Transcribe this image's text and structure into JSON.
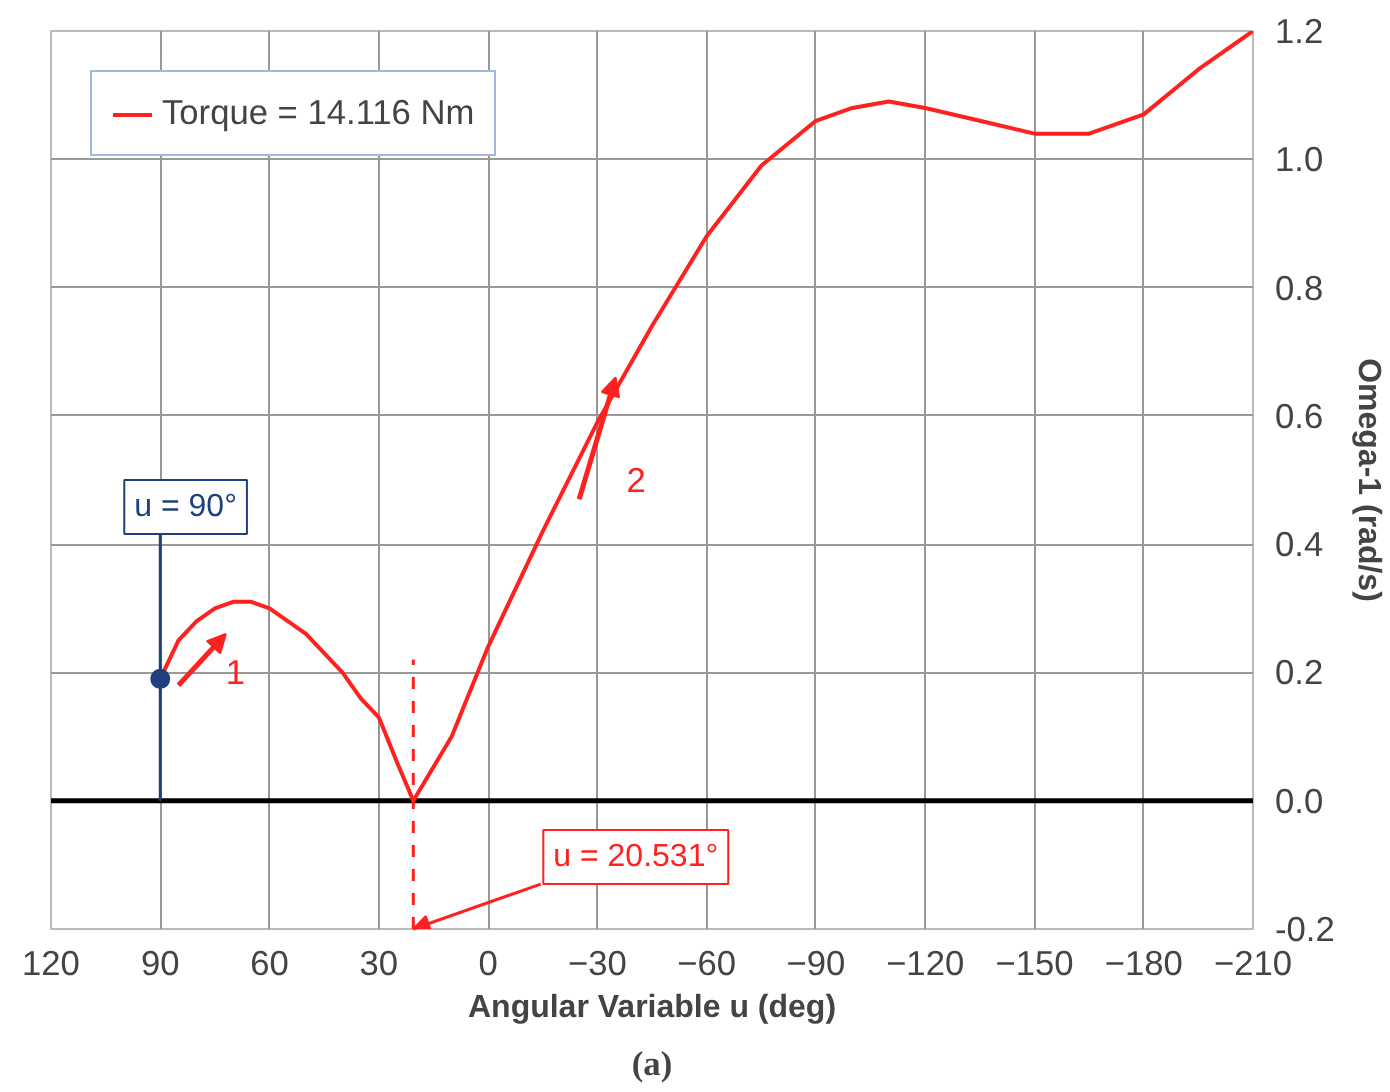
{
  "chart_data": {
    "type": "line",
    "xlabel": "Angular Variable u (deg)",
    "ylabel": "Omega-1 (rad/s)",
    "x": [
      90,
      85,
      80,
      75,
      70,
      65,
      60,
      55,
      50,
      45,
      40,
      35,
      30,
      25,
      20.531,
      10,
      0,
      -15,
      -30,
      -45,
      -60,
      -75,
      -90,
      -100,
      -110,
      -120,
      -135,
      -150,
      -165,
      -180,
      -195,
      -210
    ],
    "series": [
      {
        "name": "Torque = 14.116 Nm",
        "color": "#ff2020",
        "values": [
          0.19,
          0.25,
          0.28,
          0.3,
          0.31,
          0.31,
          0.3,
          0.28,
          0.26,
          0.23,
          0.2,
          0.16,
          0.13,
          0.06,
          0,
          0.1,
          0.24,
          0.42,
          0.59,
          0.74,
          0.88,
          0.99,
          1.06,
          1.08,
          1.09,
          1.08,
          1.06,
          1.04,
          1.04,
          1.07,
          1.14,
          1.2
        ]
      },
      {
        "type": "scatter",
        "color": "#1f3f7f",
        "x": [
          90
        ],
        "values": [
          0.19
        ]
      }
    ],
    "xlim": [
      120,
      -210
    ],
    "xticks": [
      120,
      90,
      60,
      30,
      0,
      -30,
      -60,
      -90,
      -120,
      -150,
      -180,
      -210
    ],
    "ylim": [
      -0.2,
      1.2
    ],
    "yticks": [
      {
        "value": -0.2,
        "label": "-0.2"
      },
      {
        "value": 0,
        "label": "0.0"
      },
      {
        "value": 0.2,
        "label": "0.2"
      },
      {
        "value": 0.4,
        "label": "0.4"
      },
      {
        "value": 0.6,
        "label": "0.6"
      },
      {
        "value": 0.8,
        "label": "0.8"
      },
      {
        "value": 1.0,
        "label": "1.0"
      },
      {
        "value": 1.2,
        "label": "1.2"
      }
    ],
    "ref_lines": [
      {
        "axis": "y",
        "value": 0,
        "color": "#000000"
      },
      {
        "axis": "x",
        "value": 90,
        "label": "u = 90°",
        "color": "#1f3f7f"
      },
      {
        "axis": "x",
        "value": 20.531,
        "label": "u = 20.531°",
        "color": "#ff2020",
        "line_style": "dashed"
      }
    ],
    "annotations": [
      "1",
      "2",
      "(a)"
    ],
    "grid": true,
    "legend": "top left"
  }
}
